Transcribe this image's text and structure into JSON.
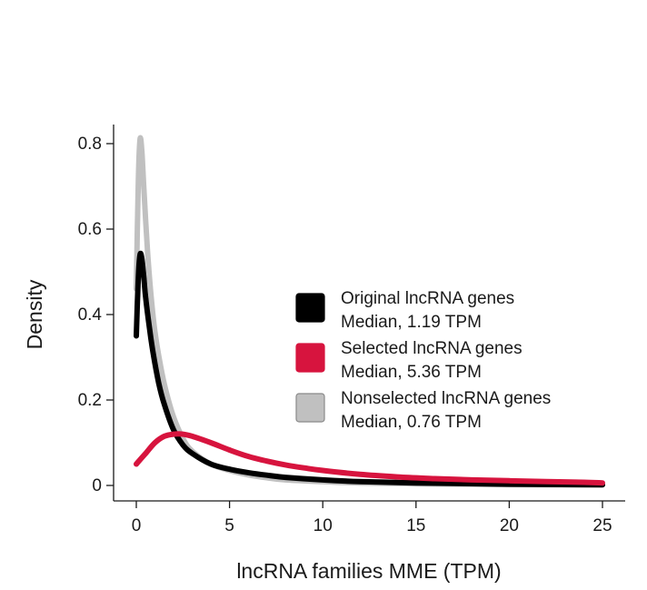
{
  "chart_data": {
    "type": "line",
    "xlabel": "lncRNA families MME (TPM)",
    "ylabel": "Density",
    "xlim": [
      0,
      25
    ],
    "ylim": [
      0,
      0.8
    ],
    "x_ticks": [
      0,
      5,
      10,
      15,
      20,
      25
    ],
    "y_ticks": [
      0,
      0.2,
      0.4,
      0.6,
      0.8
    ],
    "x_tick_labels": [
      "0",
      "5",
      "10",
      "15",
      "20",
      "25"
    ],
    "y_tick_labels": [
      "0",
      "0.2",
      "0.4",
      "0.6",
      "0.8"
    ],
    "grid": false,
    "legend_position": "center-right",
    "series": [
      {
        "name": "Nonselected lncRNA genes",
        "median_label": "Median, 0.76 TPM",
        "color": "#c0c0c0",
        "x": [
          0,
          0.1,
          0.2,
          0.3,
          0.4,
          0.6,
          0.8,
          1.0,
          1.3,
          1.6,
          2.0,
          2.5,
          3.0,
          4.0,
          5.0,
          6.0,
          7.0,
          8.0,
          10.0,
          12.0,
          15.0,
          20.0,
          25.0
        ],
        "y": [
          0.46,
          0.7,
          0.81,
          0.78,
          0.7,
          0.55,
          0.44,
          0.36,
          0.28,
          0.22,
          0.16,
          0.11,
          0.08,
          0.05,
          0.035,
          0.025,
          0.018,
          0.013,
          0.009,
          0.006,
          0.004,
          0.002,
          0.001
        ]
      },
      {
        "name": "Original lncRNA genes",
        "median_label": "Median, 1.19 TPM",
        "color": "#000000",
        "x": [
          0,
          0.1,
          0.2,
          0.3,
          0.4,
          0.5,
          0.7,
          0.9,
          1.2,
          1.5,
          2.0,
          2.5,
          3.0,
          4.0,
          5.0,
          6.0,
          7.0,
          8.0,
          10.0,
          12.0,
          15.0,
          20.0,
          25.0
        ],
        "y": [
          0.35,
          0.48,
          0.54,
          0.53,
          0.49,
          0.44,
          0.37,
          0.31,
          0.24,
          0.19,
          0.13,
          0.095,
          0.075,
          0.05,
          0.038,
          0.03,
          0.024,
          0.019,
          0.013,
          0.009,
          0.006,
          0.003,
          0.0015
        ]
      },
      {
        "name": "Selected lncRNA genes",
        "median_label": "Median, 5.36 TPM",
        "color": "#d7143e",
        "x": [
          0,
          0.5,
          1.0,
          1.5,
          2.0,
          2.5,
          3.0,
          4.0,
          5.0,
          6.0,
          7.0,
          8.0,
          9.0,
          10.0,
          12.0,
          14.0,
          16.0,
          18.0,
          20.0,
          22.0,
          24.0,
          25.0
        ],
        "y": [
          0.05,
          0.075,
          0.1,
          0.115,
          0.12,
          0.12,
          0.115,
          0.1,
          0.083,
          0.068,
          0.057,
          0.048,
          0.041,
          0.035,
          0.026,
          0.02,
          0.016,
          0.013,
          0.011,
          0.009,
          0.0075,
          0.006
        ]
      }
    ],
    "legend_order": [
      1,
      2,
      0
    ]
  }
}
